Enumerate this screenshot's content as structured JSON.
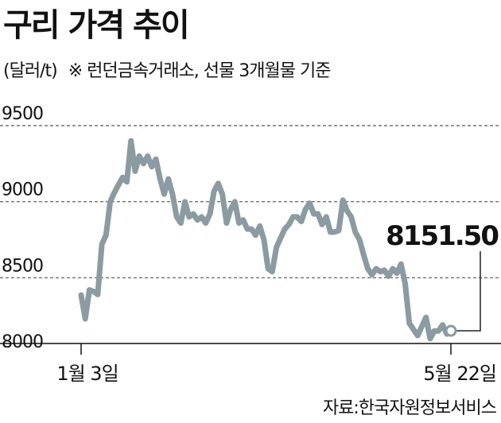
{
  "title": "구리 가격 추이",
  "unit": "(달러/t)",
  "note": "※ 런던금속거래소, 선물 3개월물 기준",
  "source": "자료:한국자원정보서비스",
  "colors": {
    "line": "#8b9ba1",
    "grid": "#555555",
    "axis": "#111111"
  },
  "chart_data": {
    "type": "line",
    "title": "구리 가격 추이",
    "ylabel": "(달러/t)",
    "ylim": [
      8000,
      9500
    ],
    "yticks": [
      9500,
      9000,
      8500,
      8000
    ],
    "ytick_labels": [
      "9500",
      "9000",
      "8500",
      "8000"
    ],
    "grid": true,
    "x_tick_labels": [
      "1월 3일",
      "5월 22일"
    ],
    "last_value_label": "8151.50",
    "series": [
      {
        "values": [
          8386,
          8230,
          8420,
          8410,
          8390,
          8720,
          8780,
          9000,
          9060,
          9110,
          9160,
          9130,
          9400,
          9200,
          9300,
          9250,
          9300,
          9230,
          9280,
          9150,
          9050,
          9150,
          9050,
          8900,
          8860,
          9000,
          8900,
          8920,
          8880,
          8900,
          8860,
          8920,
          9070,
          9120,
          9050,
          8860,
          8950,
          9000,
          8860,
          8880,
          8820,
          8820,
          8780,
          8840,
          8750,
          8560,
          8540,
          8700,
          8760,
          8820,
          8850,
          8900,
          8900,
          8870,
          8950,
          8990,
          8920,
          8920,
          8850,
          8900,
          8800,
          8800,
          8810,
          9010,
          8940,
          8900,
          8800,
          8750,
          8650,
          8560,
          8520,
          8560,
          8540,
          8550,
          8510,
          8560,
          8530,
          8590,
          8460,
          8200,
          8160,
          8120,
          8180,
          8240,
          8100,
          8150,
          8150,
          8190,
          8130,
          8151.5
        ]
      }
    ]
  }
}
